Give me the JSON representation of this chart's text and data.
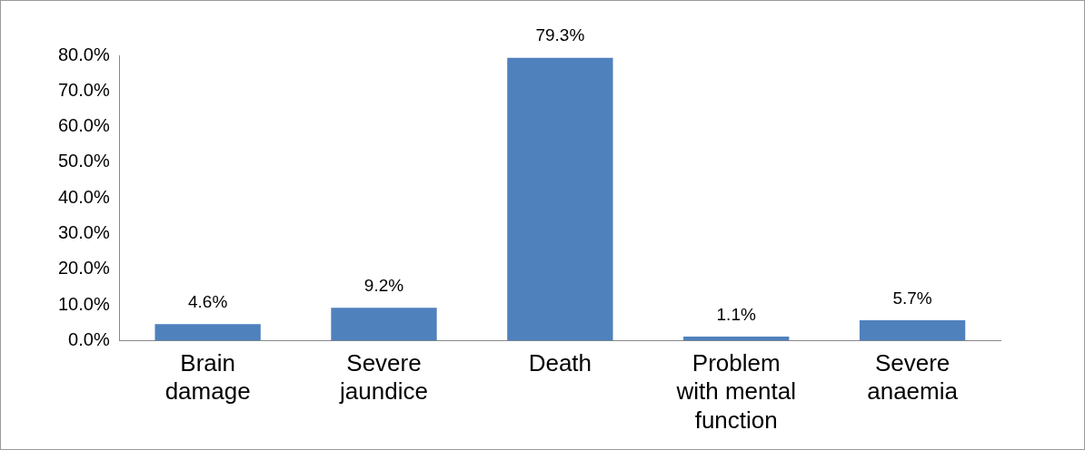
{
  "chart_data": {
    "type": "bar",
    "categories": [
      "Brain damage",
      "Severe jaundice",
      "Death",
      "Problem with mental function",
      "Severe anaemia"
    ],
    "values": [
      4.6,
      9.2,
      79.3,
      1.1,
      5.7
    ],
    "value_labels": [
      "4.6%",
      "9.2%",
      "79.3%",
      "1.1%",
      "5.7%"
    ],
    "color": "#4f81bd",
    "ylim": [
      0,
      80
    ],
    "yticks": [
      {
        "value": 0,
        "label": "0.0%"
      },
      {
        "value": 10,
        "label": "10.0%"
      },
      {
        "value": 20,
        "label": "20.0%"
      },
      {
        "value": 30,
        "label": "30.0%"
      },
      {
        "value": 40,
        "label": "40.0%"
      },
      {
        "value": 50,
        "label": "50.0%"
      },
      {
        "value": 60,
        "label": "60.0%"
      },
      {
        "value": 70,
        "label": "70.0%"
      },
      {
        "value": 80,
        "label": "80.0%"
      }
    ],
    "grid": false,
    "legend": false
  }
}
